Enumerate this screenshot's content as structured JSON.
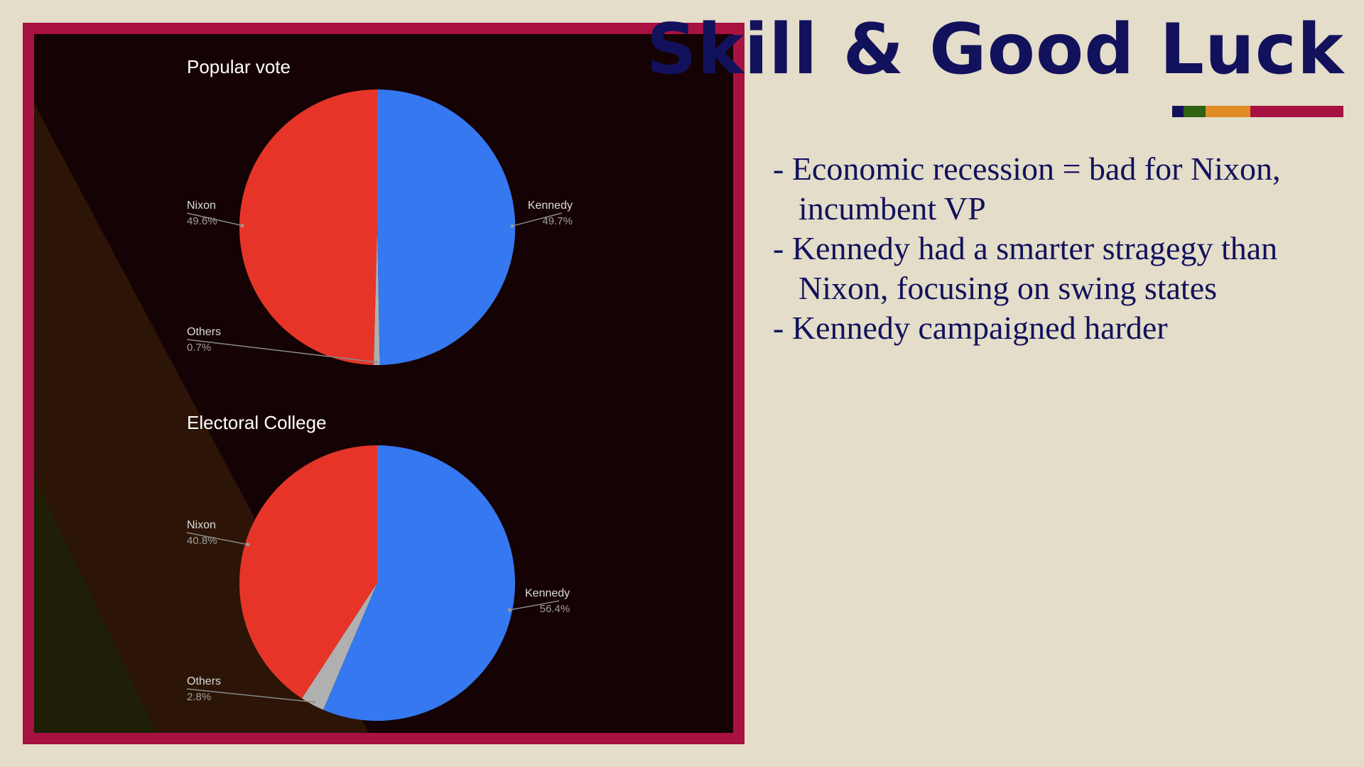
{
  "title": "Skill & Good Luck",
  "accent_colors": [
    "#12115c",
    "#2f6212",
    "#e08b24",
    "#a81241"
  ],
  "bullets": [
    "- Economic recession = bad for Nixon, incumbent VP",
    "- Kennedy had a smarter stragegy than Nixon, focusing on swing states",
    "- Kennedy campaigned harder"
  ],
  "chart_data": [
    {
      "type": "pie",
      "title": "Popular vote",
      "slices": [
        {
          "name": "Kennedy",
          "value": 49.7,
          "label": "49.7%",
          "color": "#3578f0"
        },
        {
          "name": "Others",
          "value": 0.7,
          "label": "0.7%",
          "color": "#b0b0b0"
        },
        {
          "name": "Nixon",
          "value": 49.6,
          "label": "49.6%",
          "color": "#e63528"
        }
      ]
    },
    {
      "type": "pie",
      "title": "Electoral College",
      "slices": [
        {
          "name": "Kennedy",
          "value": 56.4,
          "label": "56.4%",
          "color": "#3578f0"
        },
        {
          "name": "Others",
          "value": 2.8,
          "label": "2.8%",
          "color": "#b0b0b0"
        },
        {
          "name": "Nixon",
          "value": 40.8,
          "label": "40.8%",
          "color": "#e63528"
        }
      ]
    }
  ]
}
